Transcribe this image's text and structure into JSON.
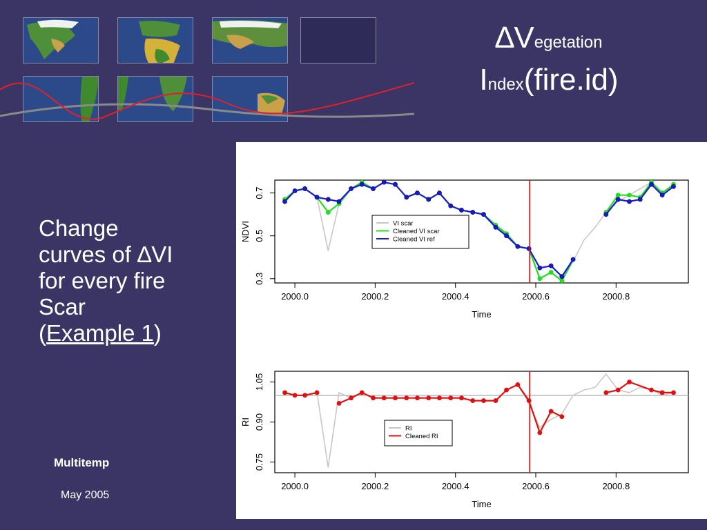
{
  "slide": {
    "title_line1_symbol": "∆V",
    "title_line1_sub": "egetation",
    "title_line2_main": "I",
    "title_line2_sub": "ndex",
    "title_line2_rest": "(fire.id)",
    "body_line1": "Change",
    "body_line2_pre": "curves of ",
    "body_line2_symbol": "∆VI",
    "body_line3": "for every fire",
    "body_line4": "Scar",
    "body_line5_open": "(",
    "body_link": "Example 1",
    "body_line5_close": ")",
    "footer_org": "Multitemp",
    "footer_date": "May 2005"
  },
  "colors": {
    "background": "#3b3566",
    "vi_scar": "#c8c8c8",
    "cleaned_vi_scar": "#22dd22",
    "cleaned_vi_ref": "#1a1ad0",
    "ri": "#c8c8c8",
    "cleaned_ri": "#e01010",
    "fire_line": "#e01010"
  },
  "chart_data": [
    {
      "type": "line",
      "xlabel": "Time",
      "ylabel": "NDVI",
      "xlim": [
        1999.95,
        2000.98
      ],
      "ylim": [
        0.28,
        0.76
      ],
      "xticks": [
        "2000.0",
        "2000.2",
        "2000.4",
        "2000.6",
        "2000.8"
      ],
      "xtick_values": [
        2000.0,
        2000.2,
        2000.4,
        2000.6,
        2000.8
      ],
      "yticks": [
        "0.3",
        "0.5",
        "0.7"
      ],
      "ytick_values": [
        0.3,
        0.5,
        0.7
      ],
      "vline": 2000.585,
      "legend_position": "center",
      "legend": [
        "VI scar",
        "Cleaned VI scar",
        "Cleaned VI ref"
      ],
      "series": [
        {
          "name": "VI scar",
          "x": [
            1999.975,
            2000.0,
            2000.025,
            2000.055,
            2000.083,
            2000.11,
            2000.14,
            2000.167,
            2000.195,
            2000.222,
            2000.25,
            2000.278,
            2000.305,
            2000.333,
            2000.36,
            2000.388,
            2000.415,
            2000.443,
            2000.47,
            2000.5,
            2000.527,
            2000.555,
            2000.583,
            2000.61,
            2000.638,
            2000.665,
            2000.693,
            2000.72,
            2000.748,
            2000.775,
            2000.805,
            2000.833,
            2000.86,
            2000.888,
            2000.915,
            2000.943
          ],
          "values": [
            0.67,
            0.71,
            0.72,
            0.68,
            0.43,
            0.65,
            0.72,
            0.75,
            0.72,
            0.75,
            0.74,
            0.68,
            0.7,
            0.67,
            0.7,
            0.64,
            0.62,
            0.61,
            0.6,
            0.55,
            0.51,
            0.45,
            0.44,
            0.3,
            0.33,
            0.29,
            0.38,
            0.48,
            0.54,
            0.61,
            0.66,
            0.69,
            0.72,
            0.75,
            0.7,
            0.74
          ]
        },
        {
          "name": "Cleaned VI scar",
          "segments": [
            {
              "x": [
                1999.975,
                2000.0,
                2000.025,
                2000.055,
                2000.083,
                2000.11,
                2000.14,
                2000.167,
                2000.195,
                2000.222,
                2000.25,
                2000.278,
                2000.305,
                2000.333,
                2000.36,
                2000.388,
                2000.415,
                2000.443,
                2000.47,
                2000.5,
                2000.527,
                2000.555,
                2000.583,
                2000.61,
                2000.638,
                2000.665,
                2000.693
              ],
              "values": [
                0.67,
                0.71,
                0.72,
                0.68,
                0.61,
                0.65,
                0.72,
                0.75,
                0.72,
                0.75,
                0.74,
                0.68,
                0.7,
                0.67,
                0.7,
                0.64,
                0.62,
                0.61,
                0.6,
                0.55,
                0.51,
                0.45,
                0.44,
                0.3,
                0.33,
                0.29,
                0.39
              ]
            },
            {
              "x": [
                2000.775,
                2000.805,
                2000.833,
                2000.86,
                2000.888,
                2000.915,
                2000.943
              ],
              "values": [
                0.61,
                0.69,
                0.69,
                0.68,
                0.75,
                0.7,
                0.74
              ]
            }
          ]
        },
        {
          "name": "Cleaned VI ref",
          "segments": [
            {
              "x": [
                1999.975,
                2000.0,
                2000.025,
                2000.055,
                2000.083,
                2000.11,
                2000.14,
                2000.167,
                2000.195,
                2000.222,
                2000.25,
                2000.278,
                2000.305,
                2000.333,
                2000.36,
                2000.388,
                2000.415,
                2000.443,
                2000.47,
                2000.5,
                2000.527,
                2000.555,
                2000.583,
                2000.61,
                2000.638,
                2000.665,
                2000.693
              ],
              "values": [
                0.66,
                0.71,
                0.72,
                0.68,
                0.67,
                0.66,
                0.72,
                0.74,
                0.72,
                0.75,
                0.74,
                0.68,
                0.7,
                0.67,
                0.7,
                0.64,
                0.62,
                0.61,
                0.6,
                0.54,
                0.5,
                0.45,
                0.44,
                0.35,
                0.36,
                0.31,
                0.39
              ]
            },
            {
              "x": [
                2000.775,
                2000.805,
                2000.833,
                2000.86,
                2000.888,
                2000.915,
                2000.943
              ],
              "values": [
                0.6,
                0.67,
                0.66,
                0.67,
                0.74,
                0.69,
                0.73
              ]
            }
          ]
        }
      ]
    },
    {
      "type": "line",
      "xlabel": "Time",
      "ylabel": "RI",
      "xlim": [
        1999.95,
        2000.98
      ],
      "ylim": [
        0.71,
        1.09
      ],
      "xticks": [
        "2000.0",
        "2000.2",
        "2000.4",
        "2000.6",
        "2000.8"
      ],
      "xtick_values": [
        2000.0,
        2000.2,
        2000.4,
        2000.6,
        2000.8
      ],
      "yticks": [
        "0.75",
        "0.90",
        "1.05"
      ],
      "ytick_values": [
        0.75,
        0.9,
        1.05
      ],
      "hline": 1.0,
      "vline": 2000.585,
      "legend_position": "center",
      "legend": [
        "RI",
        "Cleaned RI"
      ],
      "series": [
        {
          "name": "RI",
          "x": [
            1999.975,
            2000.0,
            2000.025,
            2000.055,
            2000.083,
            2000.11,
            2000.14,
            2000.167,
            2000.195,
            2000.222,
            2000.25,
            2000.278,
            2000.305,
            2000.333,
            2000.36,
            2000.388,
            2000.415,
            2000.443,
            2000.47,
            2000.5,
            2000.527,
            2000.555,
            2000.583,
            2000.61,
            2000.638,
            2000.665,
            2000.693,
            2000.72,
            2000.748,
            2000.775,
            2000.805,
            2000.833,
            2000.86,
            2000.888,
            2000.915,
            2000.943
          ],
          "values": [
            1.01,
            1.0,
            1.0,
            1.01,
            0.73,
            1.01,
            0.99,
            1.01,
            0.99,
            0.99,
            0.99,
            0.99,
            0.99,
            0.99,
            0.99,
            0.99,
            0.99,
            0.98,
            0.98,
            0.98,
            1.02,
            1.04,
            0.97,
            0.88,
            0.91,
            0.93,
            1.0,
            1.02,
            1.03,
            1.08,
            1.02,
            1.01,
            1.03,
            1.02,
            1.0,
            1.01
          ]
        },
        {
          "name": "Cleaned RI",
          "segments": [
            {
              "x": [
                1999.975,
                2000.0,
                2000.025,
                2000.055
              ],
              "values": [
                1.01,
                1.0,
                1.0,
                1.01
              ]
            },
            {
              "x": [
                2000.11,
                2000.14,
                2000.167,
                2000.195,
                2000.222,
                2000.25,
                2000.278,
                2000.305,
                2000.333,
                2000.36,
                2000.388,
                2000.415,
                2000.443,
                2000.47,
                2000.5,
                2000.527,
                2000.555,
                2000.583,
                2000.61,
                2000.638,
                2000.665
              ],
              "values": [
                0.97,
                0.99,
                1.01,
                0.99,
                0.99,
                0.99,
                0.99,
                0.99,
                0.99,
                0.99,
                0.99,
                0.99,
                0.98,
                0.98,
                0.98,
                1.02,
                1.04,
                0.98,
                0.86,
                0.94,
                0.92
              ]
            },
            {
              "x": [
                2000.775,
                2000.805,
                2000.833,
                2000.888,
                2000.915,
                2000.943
              ],
              "values": [
                1.01,
                1.02,
                1.05,
                1.02,
                1.01,
                1.01
              ]
            }
          ]
        }
      ]
    }
  ]
}
